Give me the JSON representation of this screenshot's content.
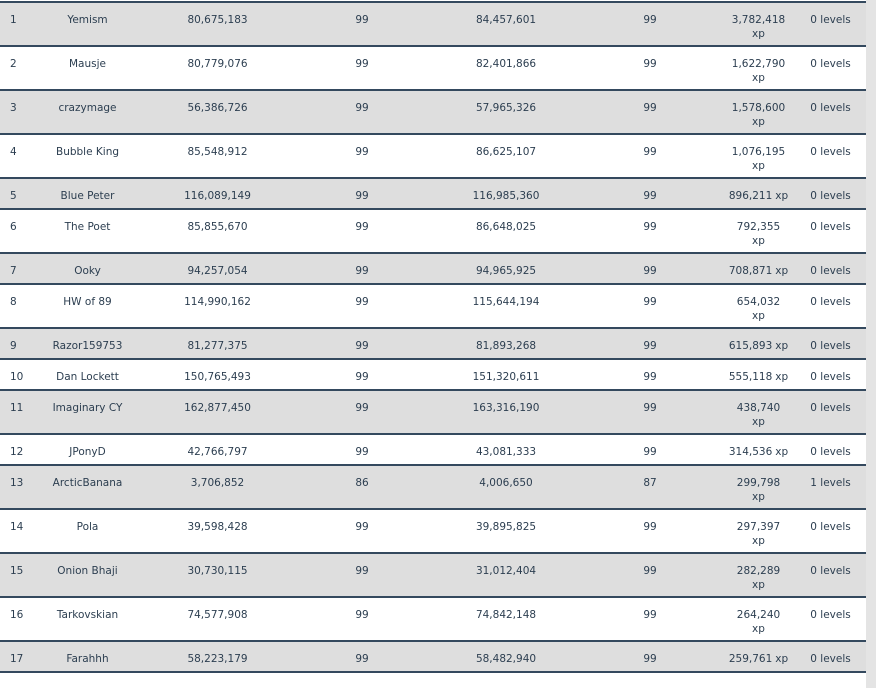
{
  "table": {
    "rows": [
      {
        "rank": "1",
        "name": "Yemism",
        "c1": "80,675,183",
        "l1": "99",
        "c2": "84,457,601",
        "l2": "99",
        "xp": "3,782,418",
        "unit": "xp",
        "levels": "0 levels"
      },
      {
        "rank": "2",
        "name": "Mausje",
        "c1": "80,779,076",
        "l1": "99",
        "c2": "82,401,866",
        "l2": "99",
        "xp": "1,622,790",
        "unit": "xp",
        "levels": "0 levels"
      },
      {
        "rank": "3",
        "name": "crazymage",
        "c1": "56,386,726",
        "l1": "99",
        "c2": "57,965,326",
        "l2": "99",
        "xp": "1,578,600",
        "unit": "xp",
        "levels": "0 levels"
      },
      {
        "rank": "4",
        "name": "Bubble King",
        "c1": "85,548,912",
        "l1": "99",
        "c2": "86,625,107",
        "l2": "99",
        "xp": "1,076,195",
        "unit": "xp",
        "levels": "0 levels"
      },
      {
        "rank": "5",
        "name": "Blue Peter",
        "c1": "116,089,149",
        "l1": "99",
        "c2": "116,985,360",
        "l2": "99",
        "xp": "896,211",
        "unit": "xp",
        "levels": "0 levels"
      },
      {
        "rank": "6",
        "name": "The Poet",
        "c1": "85,855,670",
        "l1": "99",
        "c2": "86,648,025",
        "l2": "99",
        "xp": "792,355",
        "unit": "xp",
        "levels": "0 levels"
      },
      {
        "rank": "7",
        "name": "Ooky",
        "c1": "94,257,054",
        "l1": "99",
        "c2": "94,965,925",
        "l2": "99",
        "xp": "708,871",
        "unit": "xp",
        "levels": "0 levels"
      },
      {
        "rank": "8",
        "name": "HW of 89",
        "c1": "114,990,162",
        "l1": "99",
        "c2": "115,644,194",
        "l2": "99",
        "xp": "654,032",
        "unit": "xp",
        "levels": "0 levels"
      },
      {
        "rank": "9",
        "name": "Razor159753",
        "c1": "81,277,375",
        "l1": "99",
        "c2": "81,893,268",
        "l2": "99",
        "xp": "615,893",
        "unit": "xp",
        "levels": "0 levels"
      },
      {
        "rank": "10",
        "name": "Dan Lockett",
        "c1": "150,765,493",
        "l1": "99",
        "c2": "151,320,611",
        "l2": "99",
        "xp": "555,118",
        "unit": "xp",
        "levels": "0 levels"
      },
      {
        "rank": "11",
        "name": "Imaginary CY",
        "c1": "162,877,450",
        "l1": "99",
        "c2": "163,316,190",
        "l2": "99",
        "xp": "438,740",
        "unit": "xp",
        "levels": "0 levels"
      },
      {
        "rank": "12",
        "name": "JPonyD",
        "c1": "42,766,797",
        "l1": "99",
        "c2": "43,081,333",
        "l2": "99",
        "xp": "314,536",
        "unit": "xp",
        "levels": "0 levels"
      },
      {
        "rank": "13",
        "name": "ArcticBanana",
        "c1": "3,706,852",
        "l1": "86",
        "c2": "4,006,650",
        "l2": "87",
        "xp": "299,798",
        "unit": "xp",
        "levels": "1 levels"
      },
      {
        "rank": "14",
        "name": "Pola",
        "c1": "39,598,428",
        "l1": "99",
        "c2": "39,895,825",
        "l2": "99",
        "xp": "297,397",
        "unit": "xp",
        "levels": "0 levels"
      },
      {
        "rank": "15",
        "name": "Onion Bhaji",
        "c1": "30,730,115",
        "l1": "99",
        "c2": "31,012,404",
        "l2": "99",
        "xp": "282,289",
        "unit": "xp",
        "levels": "0 levels"
      },
      {
        "rank": "16",
        "name": "Tarkovskian",
        "c1": "74,577,908",
        "l1": "99",
        "c2": "74,842,148",
        "l2": "99",
        "xp": "264,240",
        "unit": "xp",
        "levels": "0 levels"
      },
      {
        "rank": "17",
        "name": "Farahhh",
        "c1": "58,223,179",
        "l1": "99",
        "c2": "58,482,940",
        "l2": "99",
        "xp": "259,761",
        "unit": "xp",
        "levels": "0 levels"
      }
    ]
  }
}
